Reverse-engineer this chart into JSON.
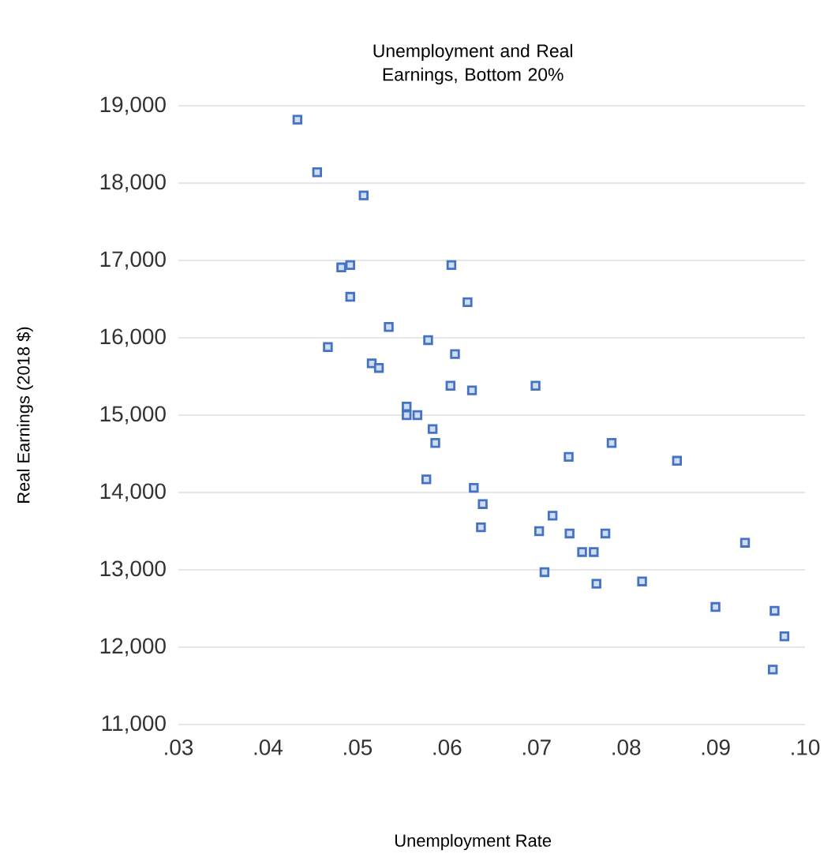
{
  "chart_data": {
    "type": "scatter",
    "title": "Unemployment and Real Earnings, Bottom 20%",
    "xlabel": "Unemployment Rate",
    "ylabel": "Real Earnings (2018 $)",
    "x": [
      0.0433,
      0.0455,
      0.0507,
      0.0482,
      0.0492,
      0.0492,
      0.0605,
      0.0623,
      0.0535,
      0.0467,
      0.0579,
      0.0609,
      0.0516,
      0.0524,
      0.0604,
      0.0628,
      0.0555,
      0.0555,
      0.0567,
      0.0584,
      0.0587,
      0.0577,
      0.063,
      0.064,
      0.0638,
      0.0699,
      0.0784,
      0.0736,
      0.0857,
      0.0718,
      0.0703,
      0.0737,
      0.0777,
      0.0751,
      0.0764,
      0.0933,
      0.0709,
      0.0767,
      0.0818,
      0.09,
      0.0966,
      0.0977,
      0.0964
    ],
    "values": [
      18820,
      18140,
      17840,
      16910,
      16940,
      16530,
      16940,
      16460,
      16140,
      15880,
      15970,
      15790,
      15670,
      15610,
      15380,
      15320,
      15110,
      15000,
      15000,
      14820,
      14640,
      14170,
      14060,
      13850,
      13550,
      15380,
      14640,
      14460,
      14410,
      13700,
      13500,
      13470,
      13470,
      13230,
      13230,
      13350,
      12970,
      12820,
      12850,
      12520,
      12470,
      12140,
      11710
    ],
    "color": "#4472c4",
    "marker": "square",
    "grid": "y",
    "xlim": [
      0.03,
      0.1
    ],
    "ylim": [
      11000,
      19000
    ],
    "xticks": [
      {
        "value": 0.03,
        "label": ".03"
      },
      {
        "value": 0.04,
        "label": ".04"
      },
      {
        "value": 0.05,
        "label": ".05"
      },
      {
        "value": 0.06,
        "label": ".06"
      },
      {
        "value": 0.07,
        "label": ".07"
      },
      {
        "value": 0.08,
        "label": ".08"
      },
      {
        "value": 0.09,
        "label": ".09"
      },
      {
        "value": 0.1,
        "label": ".10"
      }
    ],
    "yticks": [
      {
        "value": 11000,
        "label": "11,000"
      },
      {
        "value": 12000,
        "label": "12,000"
      },
      {
        "value": 13000,
        "label": "13,000"
      },
      {
        "value": 14000,
        "label": "14,000"
      },
      {
        "value": 15000,
        "label": "15,000"
      },
      {
        "value": 16000,
        "label": "16,000"
      },
      {
        "value": 17000,
        "label": "17,000"
      },
      {
        "value": 18000,
        "label": "18,000"
      },
      {
        "value": 19000,
        "label": "19,000"
      }
    ]
  }
}
